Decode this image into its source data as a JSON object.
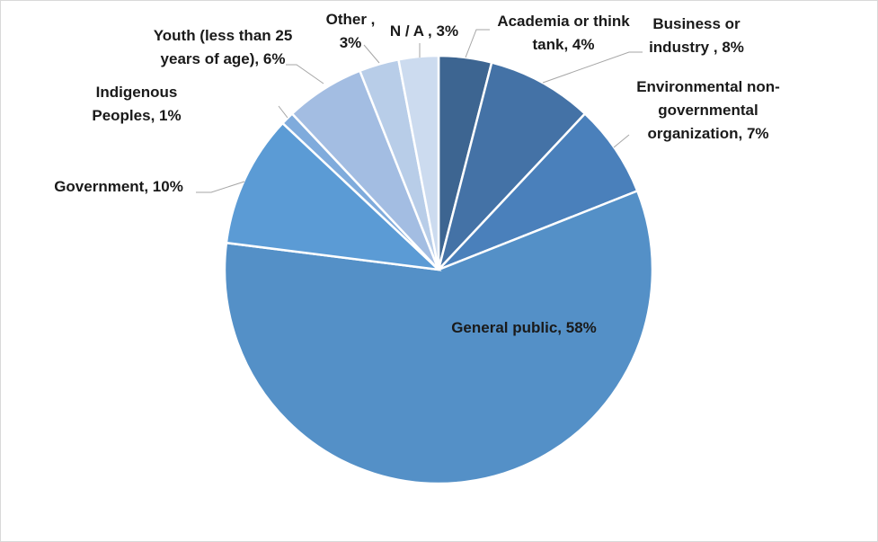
{
  "chart_data": {
    "type": "pie",
    "categories": [
      "Academia or think tank,",
      "Business or industry ,",
      "Environmental non-governmental organization,",
      "General public,",
      "Government,",
      "Indigenous Peoples,",
      "Youth (less than 25 years of age),",
      "Other ,",
      "N / A ,"
    ],
    "values": [
      4,
      8,
      7,
      58,
      10,
      1,
      6,
      3,
      3
    ],
    "value_labels": [
      "4%",
      "8%",
      "7%",
      "58%",
      "10%",
      "1%",
      "6%",
      "3%",
      "3%"
    ],
    "colors": [
      "#3d6591",
      "#4472a6",
      "#4a80bb",
      "#5490c7",
      "#5b9bd5",
      "#7fabdc",
      "#a3bde2",
      "#b8cde8",
      "#ccdbef"
    ]
  }
}
